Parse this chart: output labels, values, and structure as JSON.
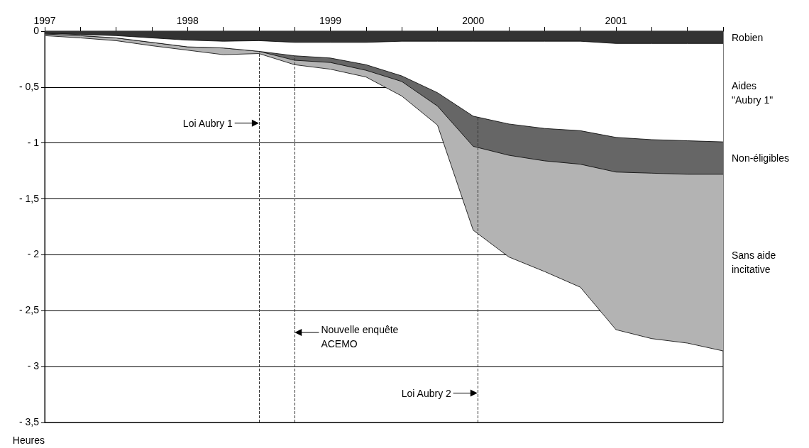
{
  "chart_data": {
    "type": "area",
    "stacked": true,
    "ylabel": "Heures",
    "x": [
      1997,
      1997.25,
      1997.5,
      1997.75,
      1998,
      1998.25,
      1998.5,
      1998.75,
      1999,
      1999.25,
      1999.5,
      1999.75,
      2000,
      2000.25,
      2000.5,
      2000.75,
      2001,
      2001.25,
      2001.5,
      2001.75
    ],
    "series": [
      {
        "name": "Robien",
        "color": "#333333",
        "values": [
          -0.02,
          -0.03,
          -0.04,
          -0.06,
          -0.08,
          -0.09,
          -0.085,
          -0.1,
          -0.1,
          -0.1,
          -0.09,
          -0.09,
          -0.09,
          -0.09,
          -0.09,
          -0.09,
          -0.11,
          -0.11,
          -0.11,
          -0.11
        ]
      },
      {
        "name": "Aides\n\"Aubry 1\"",
        "color": "#ffffff",
        "values": [
          -0.005,
          -0.01,
          -0.02,
          -0.04,
          -0.06,
          -0.06,
          -0.095,
          -0.12,
          -0.14,
          -0.2,
          -0.31,
          -0.46,
          -0.67,
          -0.74,
          -0.78,
          -0.8,
          -0.84,
          -0.86,
          -0.87,
          -0.88
        ]
      },
      {
        "name": "Non-éligibles",
        "color": "#666666",
        "values": [
          0,
          0,
          0,
          0,
          0,
          0,
          0,
          -0.04,
          -0.04,
          -0.05,
          -0.05,
          -0.12,
          -0.27,
          -0.28,
          -0.29,
          -0.3,
          -0.31,
          -0.3,
          -0.3,
          -0.29
        ]
      },
      {
        "name": "Sans aide\nincitative",
        "color": "#b3b3b3",
        "values": [
          -0.015,
          -0.02,
          -0.025,
          -0.03,
          -0.03,
          -0.06,
          -0.02,
          -0.04,
          -0.06,
          -0.06,
          -0.13,
          -0.17,
          -0.75,
          -0.91,
          -0.99,
          -1.1,
          -1.41,
          -1.48,
          -1.51,
          -1.58
        ]
      }
    ],
    "xlim": [
      1997,
      2001.75
    ],
    "xticks": [
      1997,
      {
        "value": 1997.25,
        "label": null
      },
      {
        "value": 1997.5,
        "label": null
      },
      {
        "value": 1997.75,
        "label": null
      },
      1998,
      {
        "value": 1998.25,
        "label": null
      },
      {
        "value": 1998.5,
        "label": null
      },
      {
        "value": 1998.75,
        "label": null
      },
      1999,
      {
        "value": 1999.25,
        "label": null
      },
      {
        "value": 1999.5,
        "label": null
      },
      {
        "value": 1999.75,
        "label": null
      },
      2000,
      {
        "value": 2000.25,
        "label": null
      },
      {
        "value": 2000.5,
        "label": null
      },
      {
        "value": 2000.75,
        "label": null
      },
      2001,
      {
        "value": 2001.25,
        "label": null
      },
      {
        "value": 2001.5,
        "label": null
      },
      {
        "value": 2001.75,
        "label": null
      }
    ],
    "ylim": [
      -3.5,
      0
    ],
    "yticks": [
      0,
      {
        "value": -0.5,
        "label": "- 0,5"
      },
      {
        "value": -1,
        "label": "- 1"
      },
      {
        "value": -1.5,
        "label": "- 1,5"
      },
      {
        "value": -2,
        "label": "- 2"
      },
      {
        "value": -2.5,
        "label": "- 2,5"
      },
      {
        "value": -3,
        "label": "- 3"
      },
      {
        "value": -3.5,
        "label": "- 3,5"
      }
    ],
    "grid": "y",
    "marker": "none",
    "line_style": "solid",
    "ref_lines": [
      {
        "axis": "x",
        "value": 1998.5,
        "color": "#333333",
        "line_style": "dashed",
        "label": "Loi Aubry 1"
      },
      {
        "axis": "x",
        "value": 1998.75,
        "color": "#333333",
        "line_style": "dashed",
        "label": "Nouvelle enquête\nACEMO"
      },
      {
        "axis": "x",
        "value": 2000.03,
        "color": "#333333",
        "line_style": "dashed",
        "label": "Loi Aubry 2"
      }
    ]
  }
}
